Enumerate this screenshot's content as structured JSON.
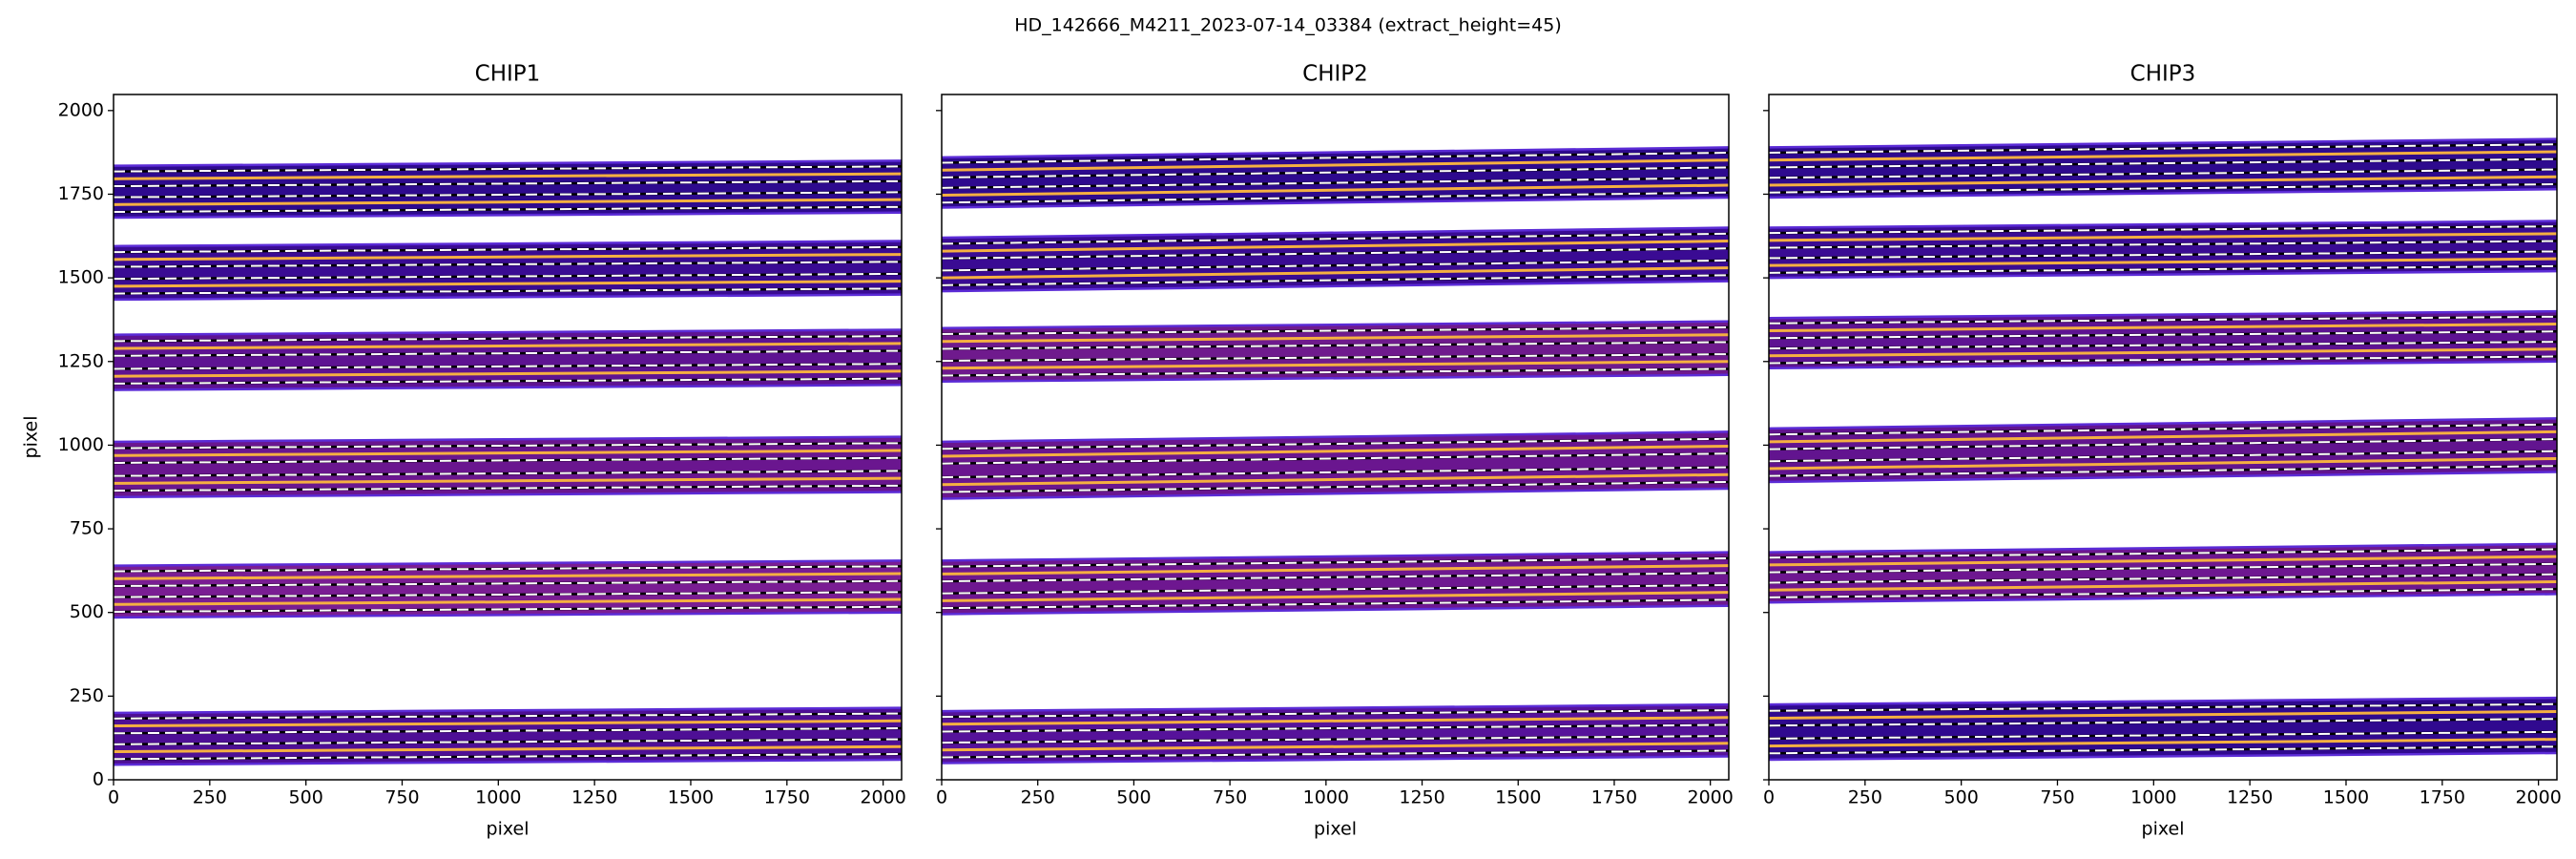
{
  "figure_title": "HD_142666_M4211_2023-07-14_03384  (extract_height=45)",
  "chart_data": [
    {
      "type": "trace",
      "title": "CHIP1",
      "xlabel": "pixel",
      "ylabel": "pixel",
      "show_ytick_labels": true,
      "xlim": [
        0,
        2048
      ],
      "ylim": [
        0,
        2048
      ],
      "xticks": [
        0,
        250,
        500,
        750,
        1000,
        1250,
        1500,
        1750,
        2000
      ],
      "yticks": [
        0,
        250,
        500,
        750,
        1000,
        1250,
        1500,
        1750,
        2000
      ],
      "x": [
        0,
        2048
      ],
      "edge_color": "#5b2bd6",
      "trace_color": "#f5b041",
      "bound_color": "#ffffff",
      "orders": [
        {
          "color": "#4e0f95",
          "lower": [
            45,
            60
          ],
          "upper": [
            200,
            215
          ],
          "traces": [
            [
              84,
              99
            ],
            [
              161,
              176
            ]
          ],
          "bounds": [
            [
              62,
              77
            ],
            [
              106,
              121
            ],
            [
              139,
              154
            ],
            [
              183,
              198
            ]
          ]
        },
        {
          "color": "#7a1d93",
          "lower": [
            485,
            500
          ],
          "upper": [
            640,
            655
          ],
          "traces": [
            [
              524,
              539
            ],
            [
              601,
              616
            ]
          ],
          "bounds": [
            [
              502,
              517
            ],
            [
              546,
              561
            ],
            [
              579,
              594
            ],
            [
              623,
              638
            ]
          ]
        },
        {
          "color": "#6a168f",
          "lower": [
            845,
            860
          ],
          "upper": [
            1010,
            1025
          ],
          "traces": [
            [
              886,
              901
            ],
            [
              969,
              984
            ]
          ],
          "bounds": [
            [
              864,
              879
            ],
            [
              908,
              923
            ],
            [
              947,
              962
            ],
            [
              991,
              1006
            ]
          ]
        },
        {
          "color": "#5e1392",
          "lower": [
            1165,
            1180
          ],
          "upper": [
            1330,
            1345
          ],
          "traces": [
            [
              1206,
              1221
            ],
            [
              1289,
              1304
            ]
          ],
          "bounds": [
            [
              1184,
              1199
            ],
            [
              1228,
              1243
            ],
            [
              1267,
              1282
            ],
            [
              1311,
              1326
            ]
          ]
        },
        {
          "color": "#3a0b93",
          "lower": [
            1435,
            1450
          ],
          "upper": [
            1595,
            1610
          ],
          "traces": [
            [
              1475,
              1490
            ],
            [
              1555,
              1570
            ]
          ],
          "bounds": [
            [
              1453,
              1468
            ],
            [
              1497,
              1512
            ],
            [
              1533,
              1548
            ],
            [
              1577,
              1592
            ]
          ]
        },
        {
          "color": "#2e0a8e",
          "lower": [
            1680,
            1695
          ],
          "upper": [
            1835,
            1850
          ],
          "traces": [
            [
              1719,
              1734
            ],
            [
              1796,
              1811
            ]
          ],
          "bounds": [
            [
              1697,
              1712
            ],
            [
              1741,
              1756
            ],
            [
              1774,
              1789
            ],
            [
              1818,
              1833
            ]
          ]
        }
      ]
    },
    {
      "type": "trace",
      "title": "CHIP2",
      "xlabel": "pixel",
      "show_ytick_labels": false,
      "xlim": [
        0,
        2048
      ],
      "ylim": [
        0,
        2048
      ],
      "xticks": [
        0,
        250,
        500,
        750,
        1000,
        1250,
        1500,
        1750,
        2000
      ],
      "yticks": [
        0,
        250,
        500,
        750,
        1000,
        1250,
        1500,
        1750,
        2000
      ],
      "x": [
        0,
        2048
      ],
      "edge_color": "#5b2bd6",
      "trace_color": "#f5b041",
      "bound_color": "#ffffff",
      "orders": [
        {
          "color": "#56129a",
          "lower": [
            50,
            70
          ],
          "upper": [
            205,
            225
          ],
          "traces": [
            [
              89,
              109
            ],
            [
              166,
              186
            ]
          ],
          "bounds": [
            [
              67,
              87
            ],
            [
              111,
              131
            ],
            [
              144,
              164
            ],
            [
              188,
              208
            ]
          ]
        },
        {
          "color": "#6e1790",
          "lower": [
            495,
            520
          ],
          "upper": [
            655,
            680
          ],
          "traces": [
            [
              535,
              560
            ],
            [
              615,
              640
            ]
          ],
          "bounds": [
            [
              513,
              538
            ],
            [
              557,
              582
            ],
            [
              593,
              618
            ],
            [
              637,
              662
            ]
          ]
        },
        {
          "color": "#6a168f",
          "lower": [
            840,
            870
          ],
          "upper": [
            1010,
            1040
          ],
          "traces": [
            [
              882,
              912
            ],
            [
              967,
              997
            ]
          ],
          "bounds": [
            [
              860,
              890
            ],
            [
              904,
              934
            ],
            [
              945,
              975
            ],
            [
              989,
              1019
            ]
          ]
        },
        {
          "color": "#6f1a8d",
          "lower": [
            1190,
            1210
          ],
          "upper": [
            1350,
            1370
          ],
          "traces": [
            [
              1230,
              1250
            ],
            [
              1310,
              1330
            ]
          ],
          "bounds": [
            [
              1208,
              1228
            ],
            [
              1252,
              1272
            ],
            [
              1288,
              1308
            ],
            [
              1332,
              1352
            ]
          ]
        },
        {
          "color": "#3a0b93",
          "lower": [
            1460,
            1490
          ],
          "upper": [
            1620,
            1650
          ],
          "traces": [
            [
              1500,
              1530
            ],
            [
              1580,
              1610
            ]
          ],
          "bounds": [
            [
              1478,
              1508
            ],
            [
              1522,
              1552
            ],
            [
              1558,
              1588
            ],
            [
              1602,
              1632
            ]
          ]
        },
        {
          "color": "#2e0a8e",
          "lower": [
            1710,
            1740
          ],
          "upper": [
            1860,
            1890
          ],
          "traces": [
            [
              1747,
              1777
            ],
            [
              1822,
              1852
            ]
          ],
          "bounds": [
            [
              1725,
              1755
            ],
            [
              1769,
              1799
            ],
            [
              1800,
              1830
            ],
            [
              1844,
              1874
            ]
          ]
        }
      ]
    },
    {
      "type": "trace",
      "title": "CHIP3",
      "xlabel": "pixel",
      "show_ytick_labels": false,
      "xlim": [
        0,
        2048
      ],
      "ylim": [
        0,
        2048
      ],
      "xticks": [
        0,
        250,
        500,
        750,
        1000,
        1250,
        1500,
        1750,
        2000
      ],
      "yticks": [
        0,
        250,
        500,
        750,
        1000,
        1250,
        1500,
        1750,
        2000
      ],
      "x": [
        0,
        2048
      ],
      "edge_color": "#5b2bd6",
      "trace_color": "#f5b041",
      "bound_color": "#ffffff",
      "orders": [
        {
          "color": "#30098f",
          "lower": [
            60,
            80
          ],
          "upper": [
            225,
            245
          ],
          "traces": [
            [
              101,
              121
            ],
            [
              184,
              204
            ]
          ],
          "bounds": [
            [
              79,
              99
            ],
            [
              123,
              143
            ],
            [
              162,
              182
            ],
            [
              206,
              226
            ]
          ]
        },
        {
          "color": "#6e1790",
          "lower": [
            530,
            555
          ],
          "upper": [
            680,
            705
          ],
          "traces": [
            [
              567,
              592
            ],
            [
              642,
              667
            ]
          ],
          "bounds": [
            [
              545,
              570
            ],
            [
              589,
              614
            ],
            [
              620,
              645
            ],
            [
              664,
              689
            ]
          ]
        },
        {
          "color": "#62148f",
          "lower": [
            890,
            920
          ],
          "upper": [
            1050,
            1080
          ],
          "traces": [
            [
              930,
              960
            ],
            [
              1010,
              1040
            ]
          ],
          "bounds": [
            [
              908,
              938
            ],
            [
              952,
              982
            ],
            [
              988,
              1018
            ],
            [
              1032,
              1062
            ]
          ]
        },
        {
          "color": "#5e1392",
          "lower": [
            1230,
            1250
          ],
          "upper": [
            1380,
            1400
          ],
          "traces": [
            [
              1267,
              1287
            ],
            [
              1342,
              1362
            ]
          ],
          "bounds": [
            [
              1245,
              1265
            ],
            [
              1289,
              1309
            ],
            [
              1320,
              1340
            ],
            [
              1364,
              1384
            ]
          ]
        },
        {
          "color": "#3a0b93",
          "lower": [
            1500,
            1520
          ],
          "upper": [
            1650,
            1670
          ],
          "traces": [
            [
              1537,
              1557
            ],
            [
              1612,
              1632
            ]
          ],
          "bounds": [
            [
              1515,
              1535
            ],
            [
              1559,
              1579
            ],
            [
              1590,
              1610
            ],
            [
              1634,
              1654
            ]
          ]
        },
        {
          "color": "#2e0a8e",
          "lower": [
            1740,
            1765
          ],
          "upper": [
            1890,
            1915
          ],
          "traces": [
            [
              1777,
              1802
            ],
            [
              1852,
              1877
            ]
          ],
          "bounds": [
            [
              1755,
              1780
            ],
            [
              1799,
              1824
            ],
            [
              1830,
              1855
            ],
            [
              1874,
              1899
            ]
          ]
        }
      ]
    }
  ]
}
